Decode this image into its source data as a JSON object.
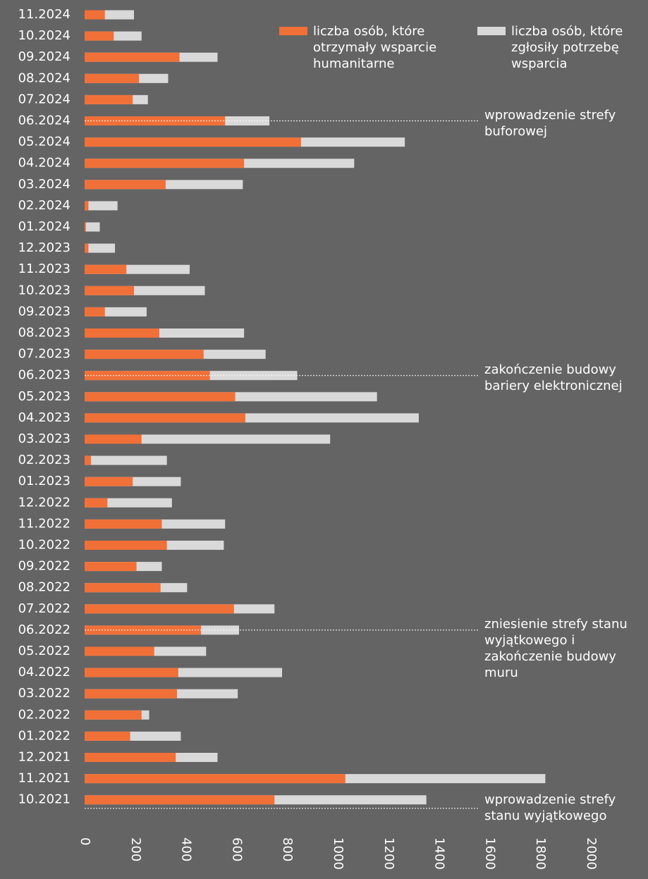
{
  "chart_data": {
    "type": "bar",
    "orientation": "horizontal",
    "overlay": true,
    "categories": [
      "11.2024",
      "10.2024",
      "09.2024",
      "08.2024",
      "07.2024",
      "06.2024",
      "05.2024",
      "04.2024",
      "03.2024",
      "02.2024",
      "01.2024",
      "12.2023",
      "11.2023",
      "10.2023",
      "09.2023",
      "08.2023",
      "07.2023",
      "06.2023",
      "05.2023",
      "04.2023",
      "03.2023",
      "02.2023",
      "01.2023",
      "12.2022",
      "11.2022",
      "10.2022",
      "09.2022",
      "08.2022",
      "07.2022",
      "06.2022",
      "05.2022",
      "04.2022",
      "03.2022",
      "02.2022",
      "01.2022",
      "12.2021",
      "11.2021",
      "10.2021"
    ],
    "series": [
      {
        "name": "liczba osób, które zgłosiły potrzebę wsparcia",
        "color": "#d9d9d9",
        "values": [
          195,
          225,
          525,
          330,
          250,
          730,
          1265,
          1065,
          625,
          130,
          60,
          120,
          415,
          475,
          245,
          630,
          715,
          840,
          1155,
          1320,
          970,
          325,
          380,
          345,
          555,
          550,
          305,
          405,
          750,
          610,
          480,
          780,
          605,
          255,
          380,
          525,
          1820,
          1350
        ]
      },
      {
        "name": "liczba osób, które otrzymały wsparcie humanitarne",
        "color": "#f07038",
        "values": [
          80,
          115,
          375,
          215,
          190,
          555,
          855,
          630,
          320,
          15,
          5,
          15,
          165,
          195,
          80,
          295,
          470,
          495,
          595,
          635,
          225,
          25,
          190,
          90,
          305,
          325,
          205,
          300,
          590,
          460,
          275,
          370,
          365,
          225,
          180,
          360,
          1030,
          750
        ]
      }
    ],
    "annotations": [
      "wprowadzenie strefy buforowej",
      "zakończenie budowy bariery elektronicznej",
      "zniesienie strefy stanu wyjątkowego i zakończenie budowy muru",
      "wprowadzenie strefy stanu wyjątkowego"
    ],
    "xlim": [
      0,
      2000
    ],
    "xticks": [
      0,
      200,
      400,
      600,
      800,
      1000,
      1200,
      1400,
      1600,
      1800,
      2000
    ],
    "grid": false
  }
}
